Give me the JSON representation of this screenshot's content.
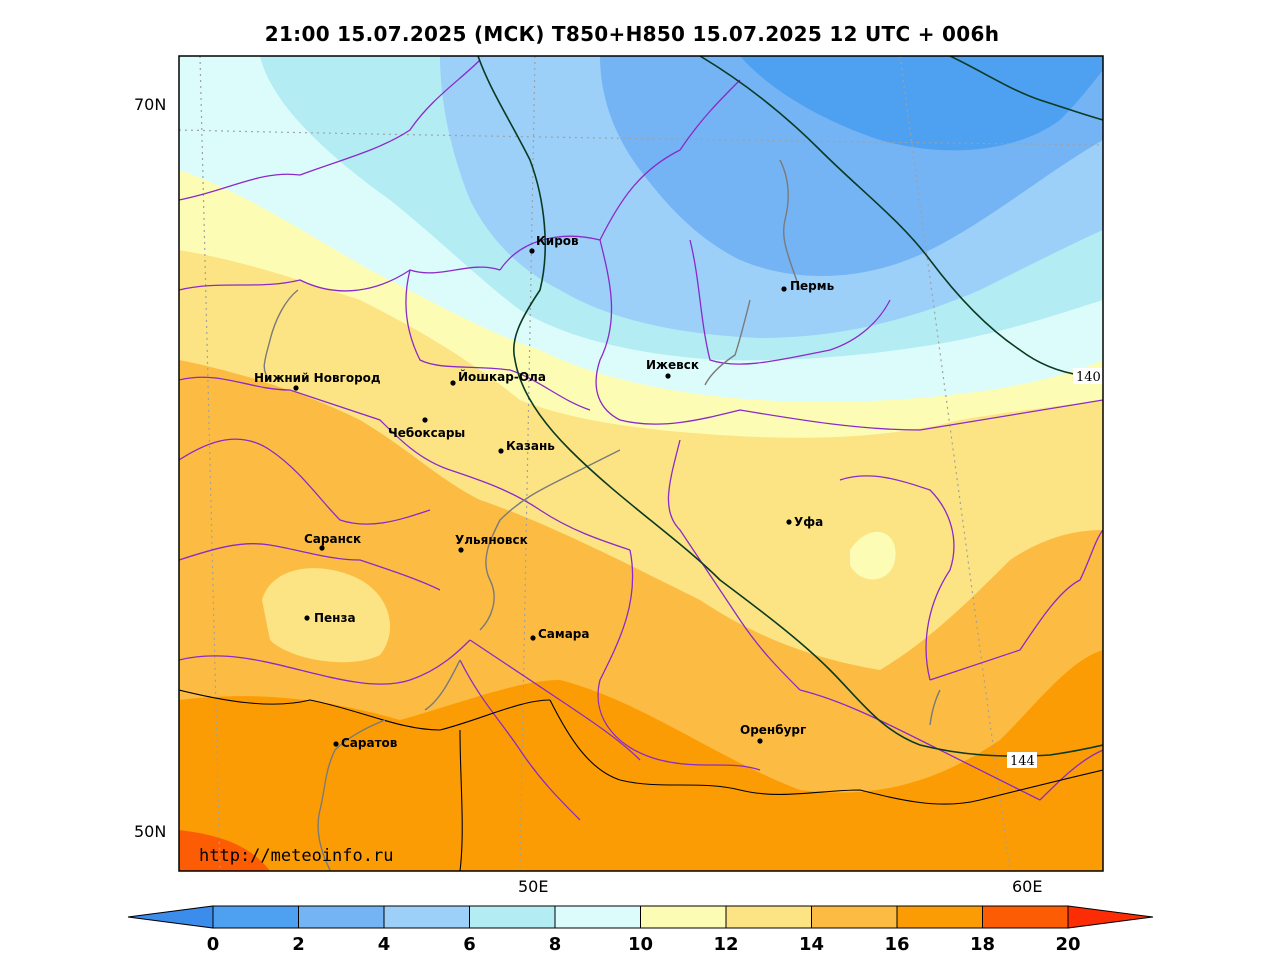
{
  "title": "21:00 15.07.2025 (МСК) T850+H850 15.07.2025 12 UTC + 006h",
  "axes": {
    "lat_labels": [
      "70N",
      "50N"
    ],
    "lon_labels": [
      "50E",
      "60E"
    ]
  },
  "colorbar": {
    "ticks": [
      "0",
      "2",
      "4",
      "6",
      "8",
      "10",
      "12",
      "14",
      "16",
      "18",
      "20"
    ],
    "colors": [
      "#4ea0f0",
      "#74b4f4",
      "#9cd0f8",
      "#b4ecf4",
      "#dcfcfc",
      "#fcfcb4",
      "#fce484",
      "#fcbc44",
      "#fc9c04",
      "#fc5c04"
    ],
    "under_color": "#3c8cec",
    "over_color": "#fc2c04"
  },
  "cities": [
    {
      "name": "Киров"
    },
    {
      "name": "Пермь"
    },
    {
      "name": "Ижевск"
    },
    {
      "name": "Нижний Новгород"
    },
    {
      "name": "Йошкар-Ола"
    },
    {
      "name": "Чебоксары"
    },
    {
      "name": "Казань"
    },
    {
      "name": "Уфа"
    },
    {
      "name": "Саранск"
    },
    {
      "name": "Ульяновск"
    },
    {
      "name": "Пенза"
    },
    {
      "name": "Самара"
    },
    {
      "name": "Оренбург"
    },
    {
      "name": "Саратов"
    }
  ],
  "contour_labels": [
    "140",
    "144"
  ],
  "watermark": "http://meteoinfo.ru"
}
